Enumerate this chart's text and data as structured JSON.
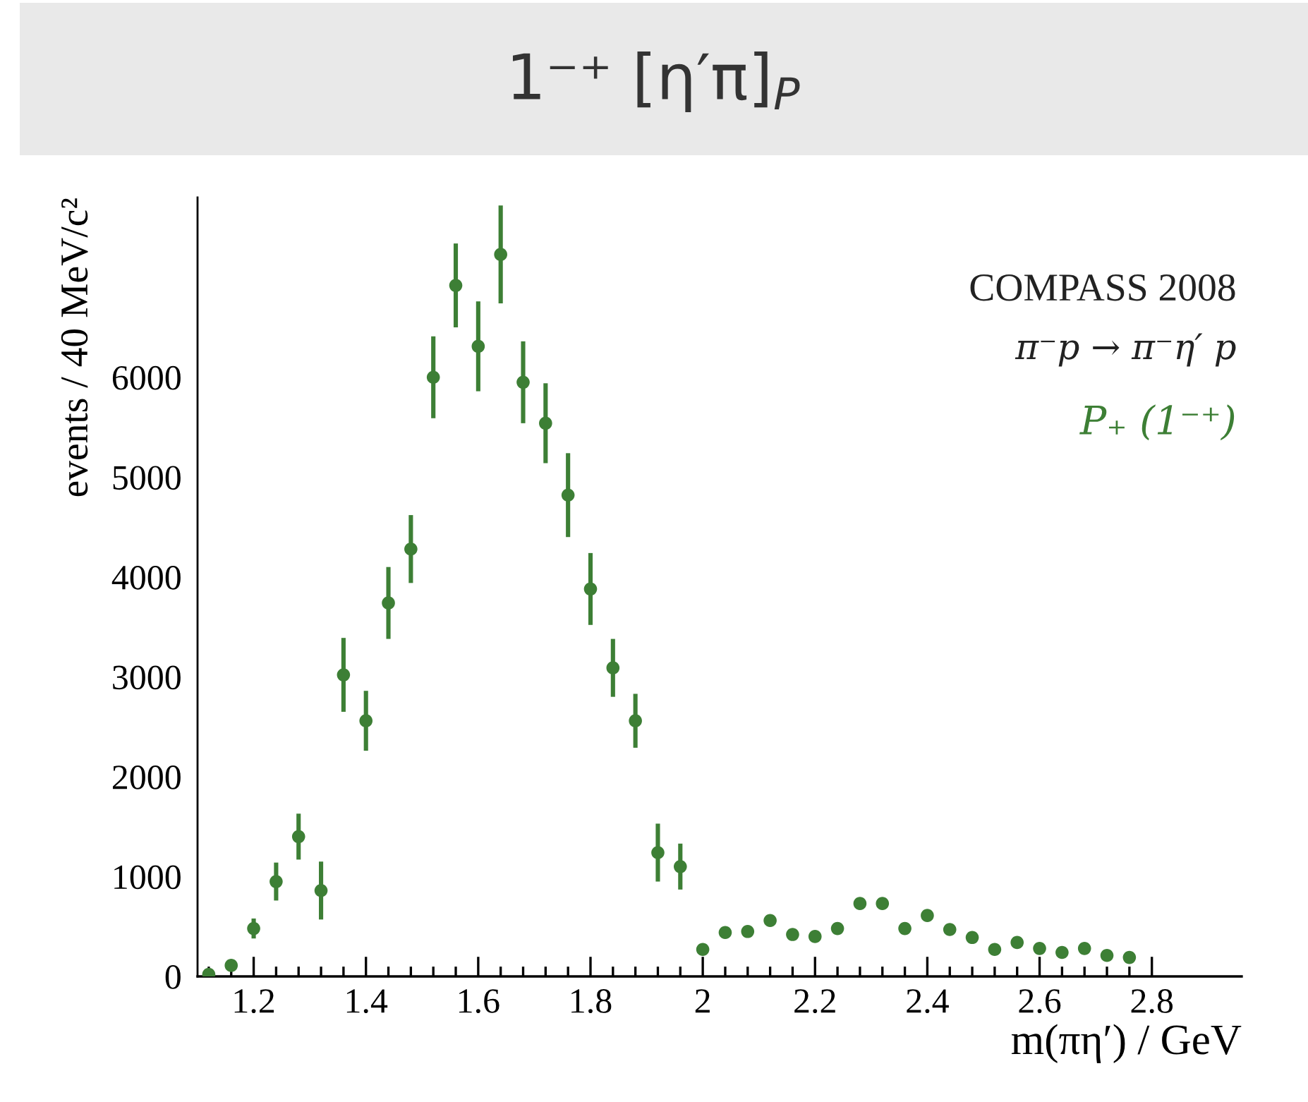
{
  "chart_data": {
    "type": "scatter",
    "title": "1⁻⁺ [η′π]$_{P}$",
    "xlabel": "m(πη′) / GeV",
    "ylabel": "events / 40 MeV/c²",
    "annotations": [
      "COMPASS 2008",
      "π⁻p → π⁻η′ p"
    ],
    "x": [
      1.12,
      1.16,
      1.2,
      1.24,
      1.28,
      1.32,
      1.36,
      1.4,
      1.44,
      1.48,
      1.52,
      1.56,
      1.6,
      1.64,
      1.68,
      1.72,
      1.76,
      1.8,
      1.84,
      1.88,
      1.92,
      1.96,
      2.0,
      2.04,
      2.08,
      2.12,
      2.16,
      2.2,
      2.24,
      2.28,
      2.32,
      2.36,
      2.4,
      2.44,
      2.48,
      2.52,
      2.56,
      2.6,
      2.64,
      2.68,
      2.72,
      2.76
    ],
    "series": [
      {
        "name": "P₊ (1⁻⁺)",
        "color": "#3d7f35",
        "values": [
          20,
          110,
          480,
          950,
          1400,
          860,
          3020,
          2560,
          3740,
          4280,
          6000,
          6920,
          6310,
          7230,
          5950,
          5540,
          4820,
          3880,
          3090,
          2560,
          1240,
          1100,
          270,
          440,
          450,
          560,
          420,
          400,
          480,
          730,
          730,
          480,
          610,
          470,
          390,
          270,
          340,
          280,
          240,
          280,
          210,
          190
        ],
        "errors": [
          30,
          40,
          100,
          190,
          230,
          290,
          370,
          300,
          360,
          340,
          410,
          420,
          450,
          490,
          410,
          400,
          420,
          360,
          290,
          270,
          290,
          230,
          50,
          60,
          60,
          60,
          60,
          60,
          60,
          60,
          60,
          60,
          60,
          60,
          50,
          50,
          50,
          40,
          40,
          40,
          40,
          40
        ]
      }
    ],
    "xlim": [
      1.1,
      2.96
    ],
    "xticks": [
      1.2,
      1.4,
      1.6,
      1.8,
      {
        "value": 2.0,
        "label": "2"
      },
      2.2,
      2.4,
      2.6,
      2.8
    ],
    "ylim": [
      0,
      7800
    ],
    "yticks": [
      0,
      1000,
      2000,
      3000,
      4000,
      5000,
      6000
    ],
    "marker": "circle",
    "grid": false,
    "legend": false
  }
}
